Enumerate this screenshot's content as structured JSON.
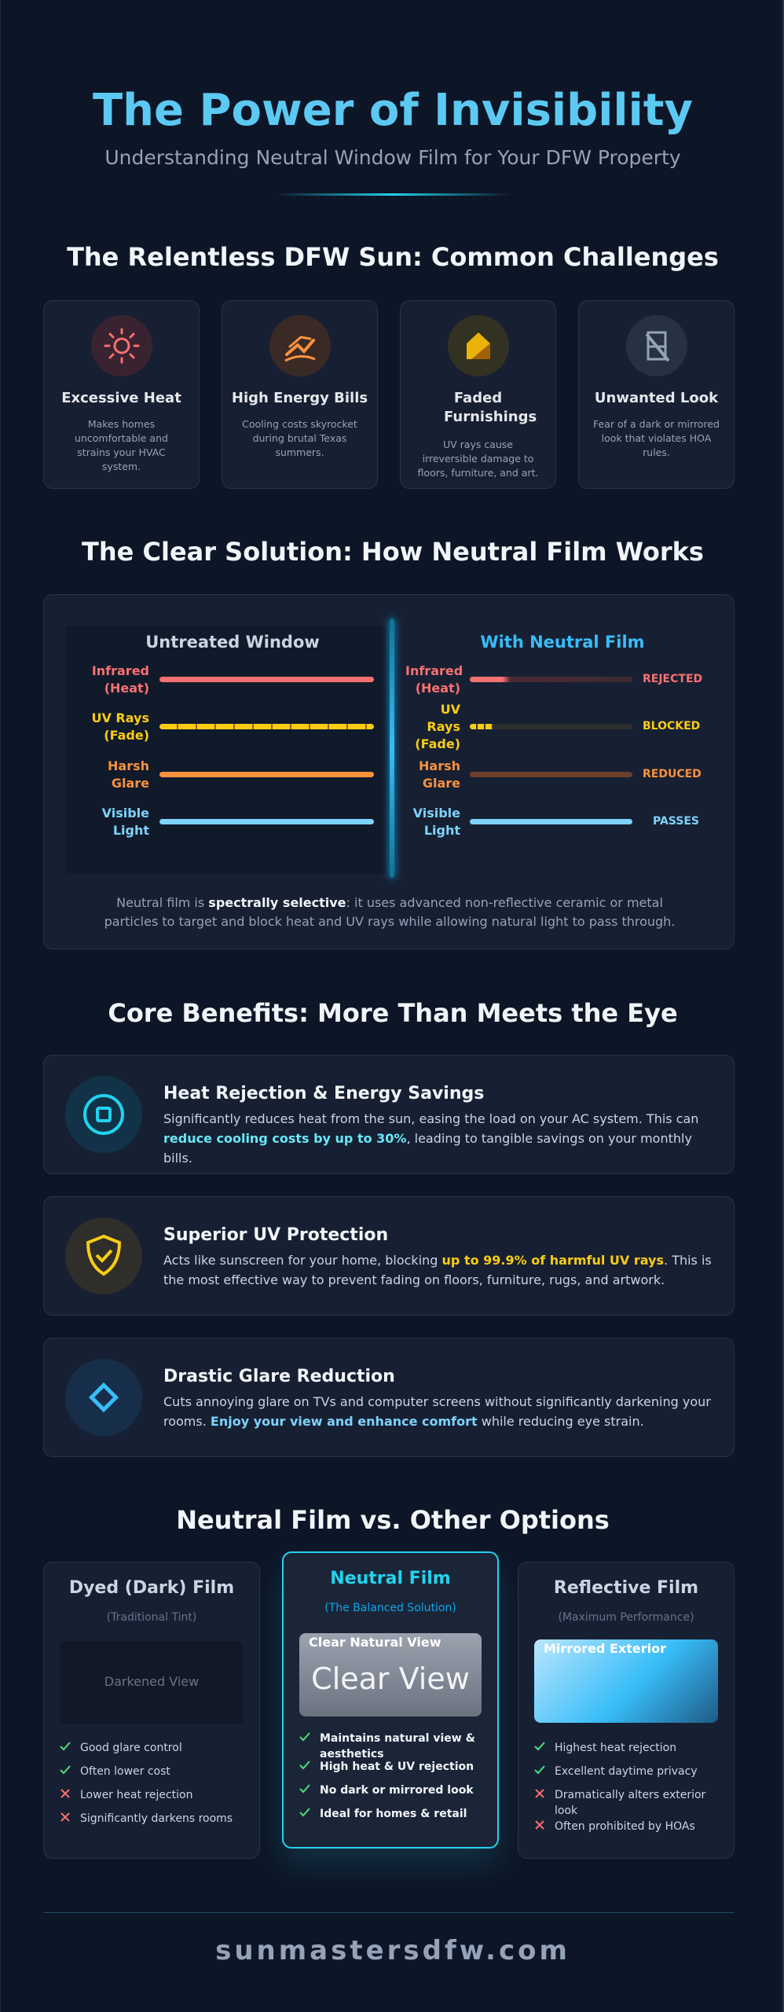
{
  "header": {
    "title": "The Power of Invisibility",
    "subtitle": "Understanding Neutral Window Film for Your DFW Property"
  },
  "challenges": {
    "heading": "The Relentless DFW Sun: Common Challenges",
    "items": [
      {
        "title": "Excessive Heat",
        "text": "Makes homes uncomfortable and strains your HVAC system."
      },
      {
        "title": "High Energy Bills",
        "text": "Cooling costs skyrocket during brutal Texas summers."
      },
      {
        "title": "Faded Furnishings",
        "text": "UV rays cause irreversible damage to floors, furniture, and art."
      },
      {
        "title": "Unwanted Look",
        "text": "Fear of a dark or mirrored look that violates HOA rules."
      }
    ]
  },
  "solution": {
    "heading": "The Clear Solution: How Neutral Film Works",
    "untreated": {
      "title": "Untreated Window",
      "rows": [
        "Infrared (Heat)",
        "UV Rays (Fade)",
        "Harsh Glare",
        "Visible Light"
      ]
    },
    "treated": {
      "title": "With Neutral Film",
      "rows": [
        {
          "label": "Infrared (Heat)",
          "status": "REJECTED"
        },
        {
          "label": "UV Rays (Fade)",
          "status": "BLOCKED"
        },
        {
          "label": "Harsh Glare",
          "status": "REDUCED"
        },
        {
          "label": "Visible Light",
          "status": "PASSES"
        }
      ]
    },
    "caption": {
      "before": "Neutral film is ",
      "bold": "spectrally selective",
      "after": ": it uses advanced non-reflective ceramic or metal particles to target and block heat and UV rays while allowing natural light to pass through."
    }
  },
  "benefits": {
    "heading": "Core Benefits: More Than Meets the Eye",
    "items": [
      {
        "title": "Heat Rejection & Energy Savings",
        "before": "Significantly reduces heat from the sun, easing the load on your AC system. This can ",
        "highlight": "reduce cooling costs by up to 30%",
        "after": ", leading to tangible savings on your monthly bills."
      },
      {
        "title": "Superior UV Protection",
        "before": "Acts like sunscreen for your home, blocking ",
        "highlight": "up to 99.9% of harmful UV rays",
        "after": ". This is the most effective way to prevent fading on floors, furniture, rugs, and artwork."
      },
      {
        "title": "Drastic Glare Reduction",
        "before": "Cuts annoying glare on TVs and computer screens without significantly darkening your rooms. ",
        "highlight": "Enjoy your view and enhance comfort",
        "after": " while reducing eye strain."
      }
    ]
  },
  "comparison": {
    "heading": "Neutral Film vs. Other Options",
    "cards": [
      {
        "title": "Dyed (Dark) Film",
        "subtitle": "(Traditional Tint)",
        "preview": "Darkened View",
        "features": [
          {
            "text": "Good glare control",
            "ok": true
          },
          {
            "text": "Often lower cost",
            "ok": true
          },
          {
            "text": "Lower heat rejection",
            "ok": false
          },
          {
            "text": "Significantly darkens rooms",
            "ok": false
          }
        ]
      },
      {
        "title": "Neutral Film",
        "subtitle": "(The Balanced Solution)",
        "preview_label": "Clear Natural View",
        "preview": "Clear View",
        "features": [
          {
            "text": "Maintains natural view & aesthetics",
            "ok": true
          },
          {
            "text": "High heat & UV rejection",
            "ok": true
          },
          {
            "text": "No dark or mirrored look",
            "ok": true
          },
          {
            "text": "Ideal for homes & retail",
            "ok": true
          }
        ]
      },
      {
        "title": "Reflective Film",
        "subtitle": "(Maximum Performance)",
        "preview_label": "Mirrored Exterior",
        "features": [
          {
            "text": "Highest heat rejection",
            "ok": true
          },
          {
            "text": "Excellent daytime privacy",
            "ok": true
          },
          {
            "text": "Dramatically alters exterior look",
            "ok": false
          },
          {
            "text": "Often prohibited by HOAs",
            "ok": false
          }
        ]
      }
    ]
  },
  "footer": {
    "site": "sunmastersdfw.com"
  }
}
